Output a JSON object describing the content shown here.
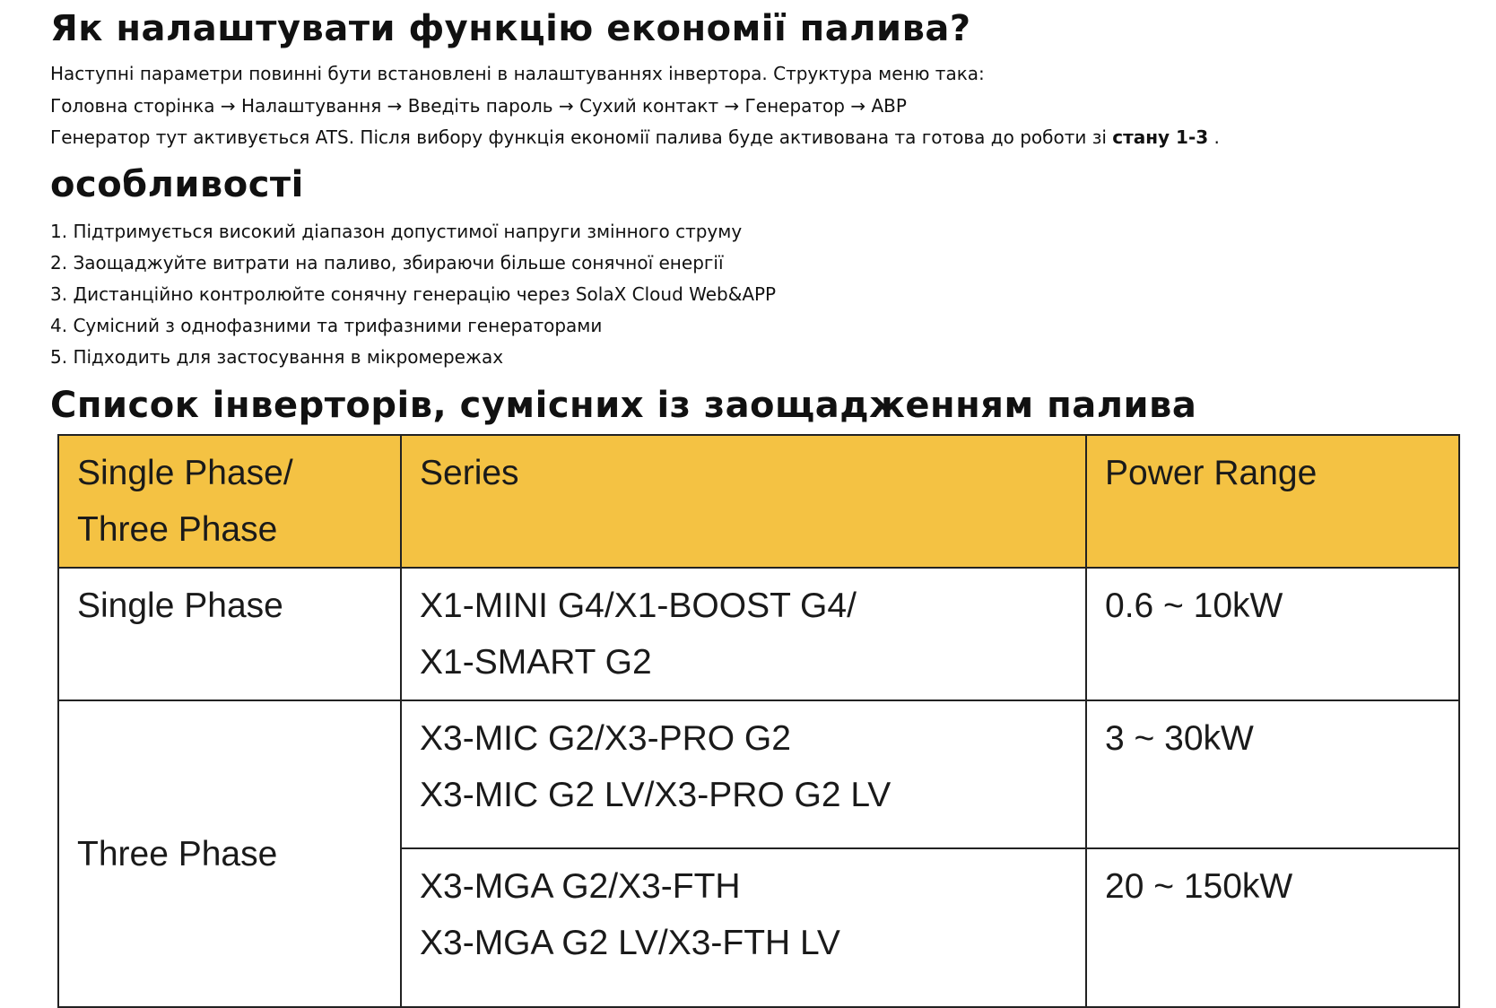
{
  "heading1": "Як налаштувати функцію економії палива?",
  "intro": {
    "line1": "Наступні параметри повинні бути встановлені в налаштуваннях інвертора. Структура меню така:",
    "menu_path": "Головна сторінка → Налаштування → Введіть пароль → Сухий контакт → Генератор → АВР",
    "line3_prefix": "Генератор тут активується ATS. Після вибору функція економії палива буде активована та готова до роботи зі ",
    "line3_bold": "стану 1-3",
    "line3_suffix": " ."
  },
  "heading2": "особливості",
  "features": [
    "1. Підтримується високий діапазон допустимої напруги змінного струму",
    "2. Заощаджуйте витрати на паливо, збираючи більше сонячної енергії",
    "3. Дистанційно контролюйте сонячну генерацію через SolaX Cloud Web&APP",
    "4. Сумісний з однофазними та трифазними генераторами",
    "5. Підходить для застосування в мікромережах"
  ],
  "heading3": "Список інверторів, сумісних із заощадженням палива",
  "table": {
    "header_color": "#f4c243",
    "headers": [
      "Single Phase/",
      "Three Phase",
      "Series",
      "Power Range"
    ],
    "rows": [
      {
        "phase": "Single Phase",
        "series": [
          "X1-MINI G4/X1-BOOST G4/",
          "X1-SMART G2"
        ],
        "power": "0.6 ~ 10kW"
      },
      {
        "phase": "Three Phase",
        "series": [
          "X3-MIC G2/X3-PRO G2",
          "X3-MIC G2 LV/X3-PRO G2 LV"
        ],
        "power": "3 ~ 30kW"
      },
      {
        "series": [
          "X3-MGA G2/X3-FTH",
          "X3-MGA G2 LV/X3-FTH LV"
        ],
        "power": "20 ~ 150kW"
      }
    ]
  }
}
